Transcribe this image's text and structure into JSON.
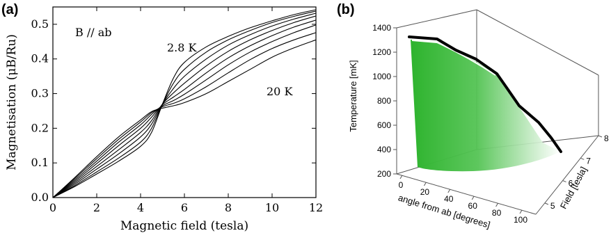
{
  "chart_data": [
    {
      "panel": "(a)",
      "type": "line",
      "title": "",
      "xlabel": "Magnetic field (tesla)",
      "ylabel": "Magnetisation (μB/Ru)",
      "xlim": [
        0,
        12
      ],
      "ylim": [
        0,
        0.55
      ],
      "x_ticks": [
        "0",
        "2",
        "4",
        "6",
        "8",
        "10",
        "12"
      ],
      "y_ticks": [
        "0.0",
        "0.1",
        "0.2",
        "0.3",
        "0.4",
        "0.5"
      ],
      "grid": false,
      "annotations": [
        "B // ab",
        "2.8 K",
        "20 K"
      ],
      "series": [
        {
          "x": [
            0,
            1,
            2,
            3,
            4,
            4.5,
            5,
            5.5,
            6,
            7,
            8,
            9,
            10,
            11,
            12
          ],
          "y": [
            0,
            0.032,
            0.068,
            0.105,
            0.148,
            0.188,
            0.27,
            0.345,
            0.39,
            0.435,
            0.465,
            0.49,
            0.51,
            0.528,
            0.542
          ]
        },
        {
          "x": [
            0,
            1,
            2,
            3,
            4,
            4.5,
            5,
            5.5,
            6,
            7,
            8,
            9,
            10,
            11,
            12
          ],
          "y": [
            0,
            0.035,
            0.074,
            0.114,
            0.16,
            0.2,
            0.27,
            0.33,
            0.37,
            0.42,
            0.455,
            0.482,
            0.505,
            0.523,
            0.538
          ]
        },
        {
          "x": [
            0,
            1,
            2,
            3,
            4,
            4.5,
            5,
            5.5,
            6,
            7,
            8,
            9,
            10,
            11,
            12
          ],
          "y": [
            0,
            0.039,
            0.082,
            0.126,
            0.175,
            0.212,
            0.27,
            0.315,
            0.35,
            0.4,
            0.44,
            0.47,
            0.495,
            0.515,
            0.532
          ]
        },
        {
          "x": [
            0,
            1,
            2,
            3,
            4,
            4.5,
            5,
            5.5,
            6,
            7,
            8,
            9,
            10,
            11,
            12
          ],
          "y": [
            0,
            0.043,
            0.09,
            0.138,
            0.188,
            0.222,
            0.27,
            0.302,
            0.33,
            0.38,
            0.422,
            0.455,
            0.482,
            0.505,
            0.524
          ]
        },
        {
          "x": [
            0,
            1,
            2,
            3,
            4,
            4.5,
            5,
            5.5,
            6,
            7,
            8,
            9,
            10,
            11,
            12
          ],
          "y": [
            0,
            0.047,
            0.098,
            0.15,
            0.2,
            0.232,
            0.268,
            0.29,
            0.312,
            0.36,
            0.403,
            0.438,
            0.467,
            0.492,
            0.512
          ]
        },
        {
          "x": [
            0,
            1,
            2,
            3,
            4,
            4.5,
            5,
            5.5,
            6,
            7,
            8,
            9,
            10,
            11,
            12
          ],
          "y": [
            0,
            0.051,
            0.105,
            0.16,
            0.21,
            0.24,
            0.265,
            0.28,
            0.298,
            0.34,
            0.383,
            0.42,
            0.45,
            0.476,
            0.498
          ]
        },
        {
          "x": [
            0,
            1,
            2,
            3,
            4,
            4.5,
            5,
            5.5,
            6,
            7,
            8,
            9,
            10,
            11,
            12
          ],
          "y": [
            0,
            0.055,
            0.112,
            0.168,
            0.218,
            0.245,
            0.262,
            0.272,
            0.285,
            0.32,
            0.36,
            0.398,
            0.43,
            0.455,
            0.476
          ]
        },
        {
          "x": [
            0,
            1,
            2,
            3,
            4,
            4.5,
            5,
            5.5,
            6,
            7,
            8,
            9,
            10,
            11,
            12
          ],
          "y": [
            0,
            0.058,
            0.118,
            0.175,
            0.224,
            0.248,
            0.258,
            0.265,
            0.274,
            0.3,
            0.335,
            0.37,
            0.405,
            0.432,
            0.455
          ]
        }
      ]
    },
    {
      "panel": "(b)",
      "type": "area",
      "subtype": "3d-surface",
      "title": "",
      "xlabel": "angle from ab [degrees]",
      "ylabel": "Field [tesla]",
      "zlabel": "Temperature [mK]",
      "xlim": [
        0,
        100
      ],
      "ylim": [
        4.5,
        8
      ],
      "zlim": [
        200,
        1400
      ],
      "x_ticks": [
        "0",
        "20",
        "40",
        "60",
        "80",
        "100"
      ],
      "y_ticks": [
        "5",
        "6",
        "7",
        "8"
      ],
      "z_ticks": [
        "200",
        "400",
        "600",
        "800",
        "1000",
        "1200",
        "1400"
      ],
      "fill_color": "#2db32d",
      "boundary": {
        "angle_deg": [
          0,
          15,
          30,
          45,
          60,
          70,
          80
        ],
        "field_T": [
          7.9,
          7.85,
          7.75,
          7.6,
          7.45,
          7.35,
          7.9
        ],
        "temperature_mK": [
          1250,
          1240,
          1150,
          1010,
          790,
          540,
          180
        ]
      }
    }
  ]
}
